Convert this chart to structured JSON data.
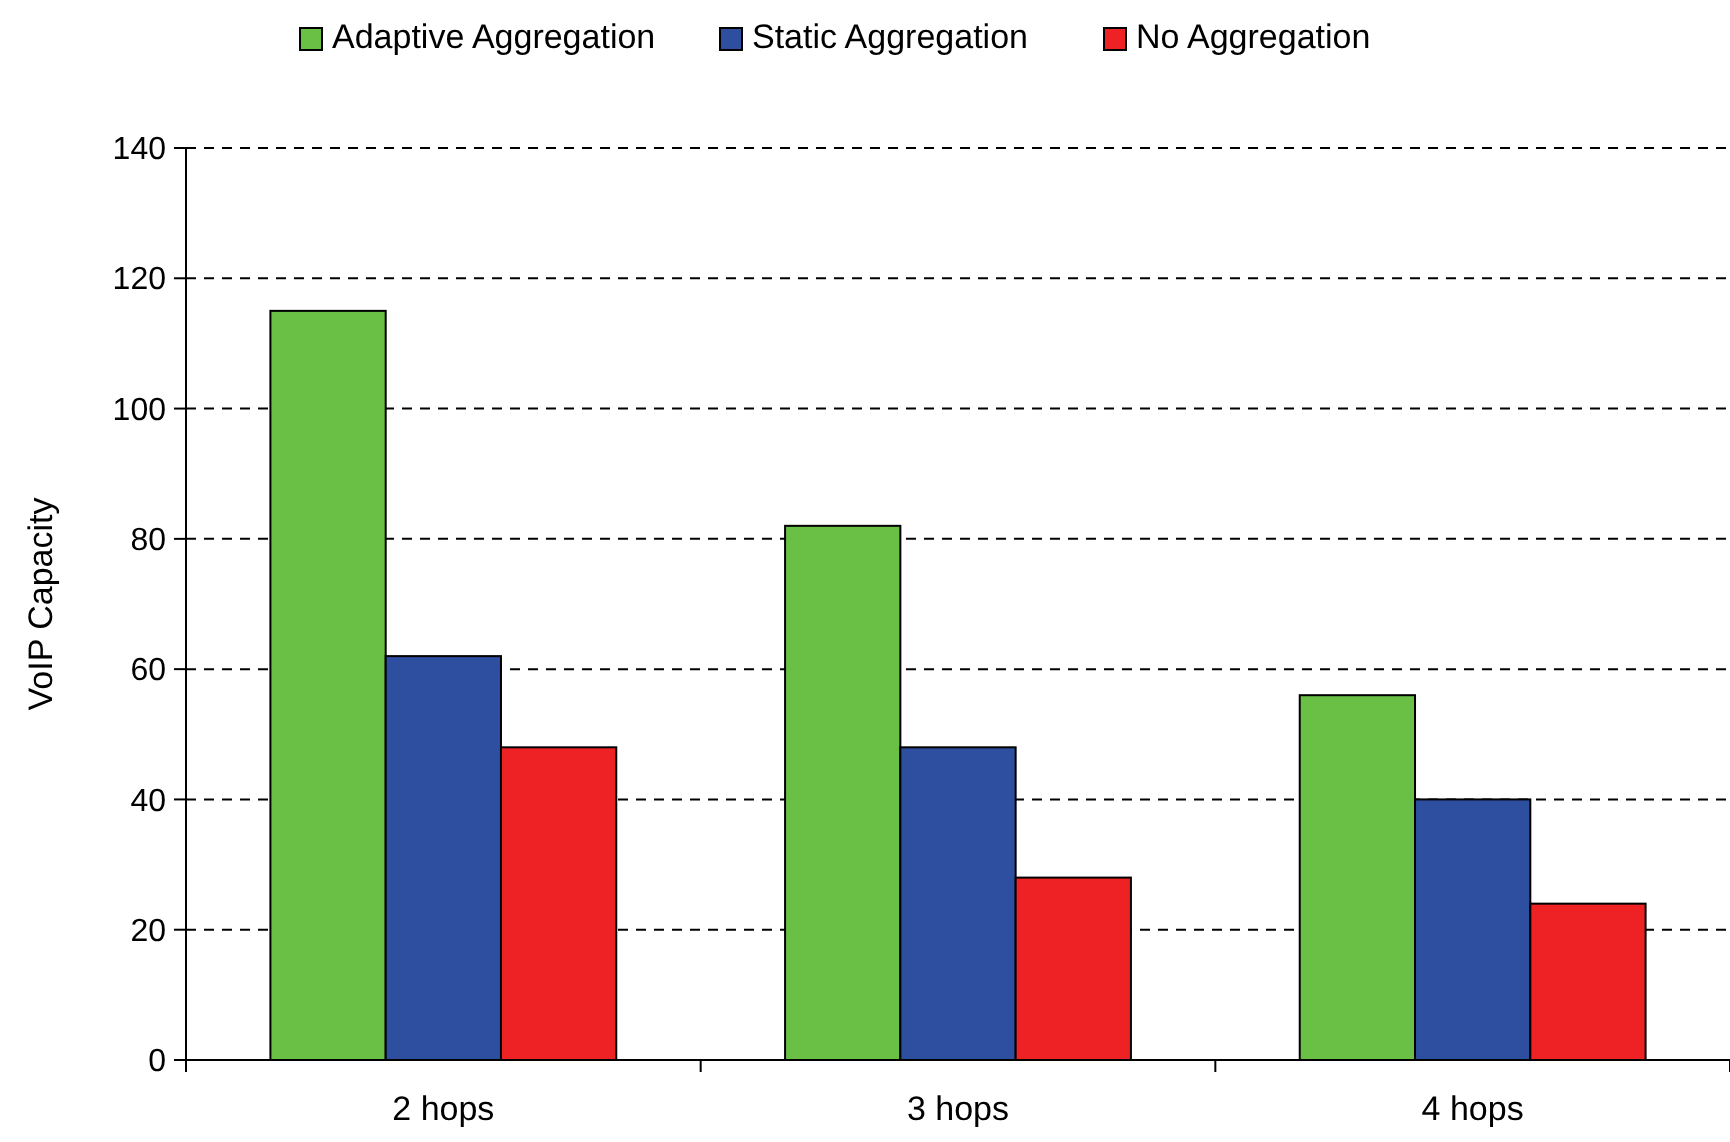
{
  "chart_data": {
    "type": "bar",
    "ylabel": "VoIP Capacity",
    "categories": [
      "2 hops",
      "3 hops",
      "4 hops"
    ],
    "series": [
      {
        "name": "Adaptive Aggregation",
        "color": "#6abf45",
        "values": [
          115,
          82,
          56
        ]
      },
      {
        "name": "Static Aggregation",
        "color": "#2e4fa0",
        "values": [
          62,
          48,
          40
        ]
      },
      {
        "name": "No Aggregation",
        "color": "#ee2224",
        "values": [
          48,
          28,
          24
        ]
      }
    ],
    "ylim": [
      0,
      140
    ],
    "yticks": [
      0,
      20,
      40,
      60,
      80,
      100,
      120,
      140
    ],
    "grid": "y",
    "legend": "top"
  }
}
